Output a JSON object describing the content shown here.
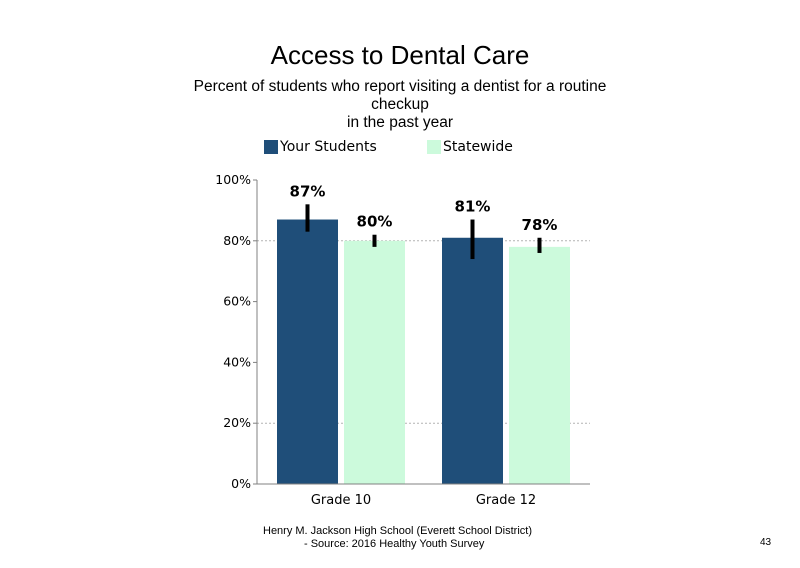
{
  "title": "Access to Dental Care",
  "subtitle_lines": [
    "Percent of students who report visiting a dentist for a routine",
    "checkup",
    "in the past year"
  ],
  "legend": [
    {
      "label": "Your Students",
      "color": "#1f4e79"
    },
    {
      "label": "Statewide",
      "color": "#ccfadc"
    }
  ],
  "chart_data": {
    "type": "bar",
    "title": "Access to Dental Care",
    "subtitle": "Percent of students who report visiting a dentist for a routine checkup in the past year",
    "categories": [
      "Grade 10",
      "Grade 12"
    ],
    "series": [
      {
        "name": "Your Students",
        "color": "#1f4e79",
        "values": [
          87,
          81
        ],
        "labels": [
          "87%",
          "81%"
        ],
        "error_low": [
          83,
          74
        ],
        "error_high": [
          92,
          87
        ]
      },
      {
        "name": "Statewide",
        "color": "#ccfadc",
        "values": [
          80,
          78
        ],
        "labels": [
          "80%",
          "78%"
        ],
        "error_low": [
          78,
          76
        ],
        "error_high": [
          82,
          81
        ]
      }
    ],
    "ylim": [
      0,
      100
    ],
    "yticks": [
      0,
      20,
      40,
      60,
      80,
      100
    ],
    "ytick_labels": [
      "0%",
      "20%",
      "40%",
      "60%",
      "80%",
      "100%"
    ],
    "gridlines": [
      20,
      80
    ],
    "legend_position": "top",
    "error_bars": true
  },
  "footer": {
    "line1": "Henry M. Jackson High School (Everett School District)",
    "line2": "- Source: 2016 Healthy Youth Survey"
  },
  "page_number": "43"
}
